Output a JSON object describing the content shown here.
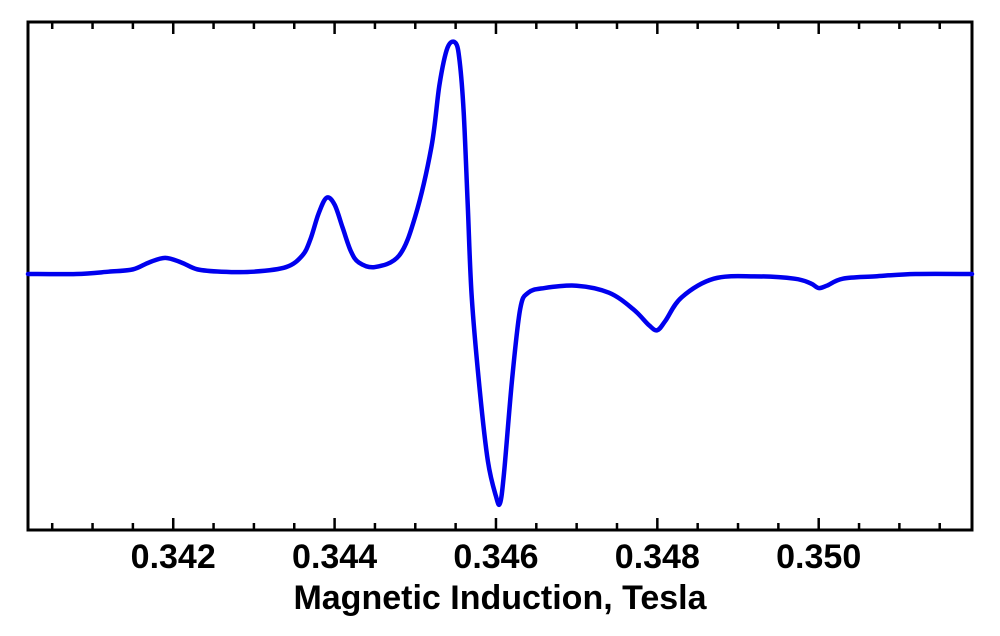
{
  "chart_data": {
    "type": "line",
    "title": "",
    "xlabel": "Magnetic Induction, Tesla",
    "ylabel": "",
    "xlim": [
      0.3402,
      0.3519
    ],
    "ylim": [
      -1.0,
      1.0
    ],
    "x_ticks": [
      "0.342",
      "0.344",
      "0.346",
      "0.348",
      "0.350"
    ],
    "x_tick_values": [
      0.342,
      0.344,
      0.346,
      0.348,
      0.35
    ],
    "y_tick_labels_shown": false,
    "grid": false,
    "line_color": "#0000ee",
    "series": [
      {
        "x": [
          0.3402,
          0.3408,
          0.3412,
          0.3415,
          0.3417,
          0.3419,
          0.3421,
          0.3423,
          0.3426,
          0.343,
          0.3434,
          0.3436,
          0.3437,
          0.3438,
          0.3439,
          0.344,
          0.3441,
          0.3442,
          0.3443,
          0.3445,
          0.3448,
          0.345,
          0.3452,
          0.3453,
          0.3454,
          0.3455,
          0.34555,
          0.3456,
          0.34565,
          0.3457,
          0.3458,
          0.3459,
          0.346,
          0.34605,
          0.3461,
          0.3462,
          0.3463,
          0.3464,
          0.3466,
          0.347,
          0.3474,
          0.3477,
          0.3479,
          0.348,
          0.3481,
          0.3483,
          0.3487,
          0.3492,
          0.3497,
          0.3499,
          0.35,
          0.3501,
          0.3503,
          0.3507,
          0.3512,
          0.3519
        ],
        "y": [
          0.0,
          0.0,
          0.01,
          0.02,
          0.05,
          0.07,
          0.05,
          0.02,
          0.01,
          0.01,
          0.03,
          0.08,
          0.15,
          0.26,
          0.33,
          0.3,
          0.2,
          0.1,
          0.05,
          0.03,
          0.08,
          0.25,
          0.55,
          0.82,
          0.98,
          1.0,
          0.92,
          0.7,
          0.3,
          -0.1,
          -0.5,
          -0.8,
          -0.95,
          -0.98,
          -0.85,
          -0.45,
          -0.15,
          -0.08,
          -0.06,
          -0.05,
          -0.08,
          -0.15,
          -0.22,
          -0.24,
          -0.2,
          -0.1,
          -0.02,
          -0.01,
          -0.02,
          -0.04,
          -0.06,
          -0.05,
          -0.02,
          -0.01,
          0.0,
          0.0
        ]
      }
    ]
  }
}
